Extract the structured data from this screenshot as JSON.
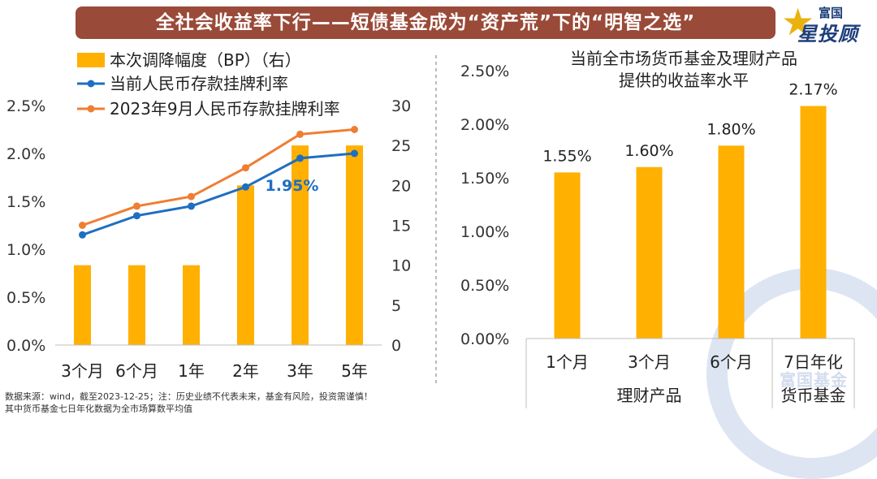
{
  "banner": {
    "title": "全社会收益率下行——短债基金成为“资产荒”下的“明智之选”"
  },
  "logo": {
    "line1": "富国",
    "line2": "星投顾"
  },
  "watermark": {
    "text": "富国基金"
  },
  "colors": {
    "banner": "#9a4a38",
    "bar": "#ffb000",
    "series_current": "#1f6ec2",
    "series_2023": "#ef7e32",
    "label_highlight": "#1f6ec2"
  },
  "footnote": {
    "line1": "数据来源：wind，截至2023-12-25；注：历史业绩不代表未来，基金有风险，投资需谨慎！",
    "line2": "其中货币基金七日年化数据为全市场算数平均值"
  },
  "chart_data": [
    {
      "type": "bar+line",
      "title": "",
      "categories": [
        "3个月",
        "6个月",
        "1年",
        "2年",
        "3年",
        "5年"
      ],
      "y_left": {
        "ticks": [
          "0.0%",
          "0.5%",
          "1.0%",
          "1.5%",
          "2.0%",
          "2.5%"
        ],
        "ylim": [
          0,
          2.5
        ],
        "unit": "%"
      },
      "y_right": {
        "ticks": [
          "0",
          "5",
          "10",
          "15",
          "20",
          "25",
          "30"
        ],
        "ylim": [
          0,
          30
        ],
        "unit": "BP"
      },
      "series": [
        {
          "name": "本次调降幅度（BP）（右）",
          "kind": "bar",
          "axis": "right",
          "values": [
            10,
            10,
            10,
            20,
            25,
            25
          ]
        },
        {
          "name": "当前人民币存款挂牌利率",
          "kind": "line",
          "axis": "left",
          "values": [
            1.15,
            1.35,
            1.45,
            1.65,
            1.95,
            2.0
          ]
        },
        {
          "name": "2023年9月人民币存款挂牌利率",
          "kind": "line",
          "axis": "left",
          "values": [
            1.25,
            1.45,
            1.55,
            1.85,
            2.2,
            2.25
          ]
        }
      ],
      "annotations": [
        {
          "text": "1.95%",
          "category": "3年",
          "series": "当前人民币存款挂牌利率"
        }
      ],
      "legend": "top-left",
      "grid": false
    },
    {
      "type": "bar",
      "title": "当前全市场货币基金及理财产品",
      "subtitle": "提供的收益率水平",
      "categories": [
        "1个月",
        "3个月",
        "6个月",
        "7日年化"
      ],
      "category_lines2": [
        "",
        "",
        "",
        "货币基金"
      ],
      "group_label": "理财产品",
      "values": [
        1.55,
        1.6,
        1.8,
        2.17
      ],
      "data_labels": [
        "1.55%",
        "1.60%",
        "1.80%",
        "2.17%"
      ],
      "y_ticks": [
        "0.00%",
        "0.50%",
        "1.00%",
        "1.50%",
        "2.00%",
        "2.50%"
      ],
      "ylim": [
        0,
        2.5
      ],
      "grid": false
    }
  ]
}
